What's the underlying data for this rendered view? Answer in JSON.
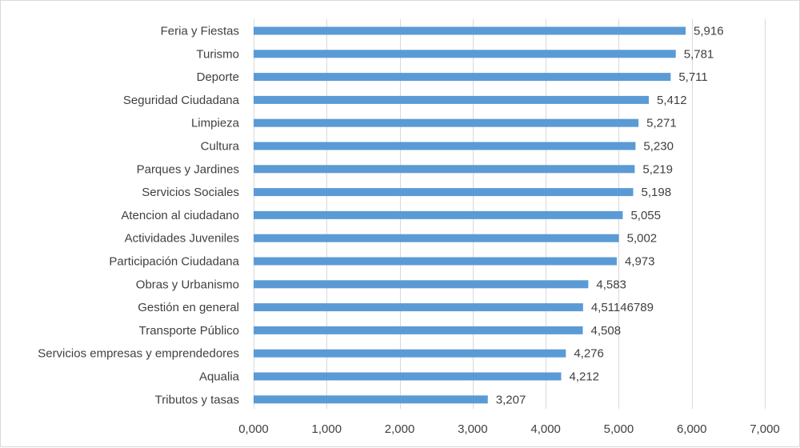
{
  "chart_data": {
    "type": "bar",
    "orientation": "horizontal",
    "categories": [
      "Feria y Fiestas",
      "Turismo",
      "Deporte",
      "Seguridad Ciudadana",
      "Limpieza",
      "Cultura",
      "Parques y Jardines",
      "Servicios Sociales",
      "Atencion al ciudadano",
      "Actividades Juveniles",
      "Participación Ciudadana",
      "Obras y Urbanismo",
      "Gestión en general",
      "Transporte Público",
      "Servicios empresas y emprendedores",
      "Aqualia",
      "Tributos y tasas"
    ],
    "values": [
      5.916,
      5.781,
      5.711,
      5.412,
      5.271,
      5.23,
      5.219,
      5.198,
      5.055,
      5.002,
      4.973,
      4.583,
      4.51146789,
      4.508,
      4.276,
      4.212,
      3.207
    ],
    "value_labels": [
      "5,916",
      "5,781",
      "5,711",
      "5,412",
      "5,271",
      "5,230",
      "5,219",
      "5,198",
      "5,055",
      "5,002",
      "4,973",
      "4,583",
      "4,51146789",
      "4,508",
      "4,276",
      "4,212",
      "3,207"
    ],
    "xlim": [
      0,
      7
    ],
    "ticks": [
      0,
      1,
      2,
      3,
      4,
      5,
      6,
      7
    ],
    "tick_labels": [
      "0,000",
      "1,000",
      "2,000",
      "3,000",
      "4,000",
      "5,000",
      "6,000",
      "7,000"
    ],
    "grid": "vertical",
    "legend": "none",
    "title": "",
    "xlabel": "",
    "ylabel": "",
    "colors": {
      "bar": "#5b9bd5",
      "grid": "#d9d9d9",
      "text": "#404040"
    }
  }
}
